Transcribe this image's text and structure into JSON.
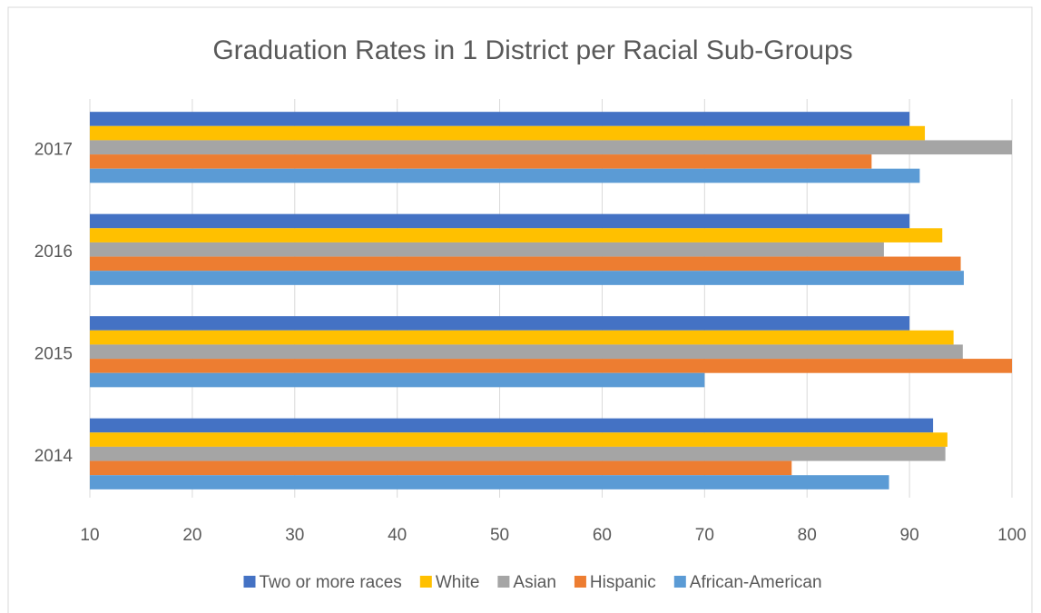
{
  "chart_data": {
    "type": "bar",
    "orientation": "horizontal",
    "title": "Graduation Rates in 1 District per Racial Sub-Groups",
    "categories": [
      "2014",
      "2015",
      "2016",
      "2017"
    ],
    "series": [
      {
        "name": "Two or more races",
        "color": "#4472c4",
        "values": [
          92.3,
          90,
          90,
          90
        ]
      },
      {
        "name": "White",
        "color": "#ffc000",
        "values": [
          93.7,
          94.3,
          93.2,
          91.5
        ]
      },
      {
        "name": "Asian",
        "color": "#a5a5a5",
        "values": [
          93.5,
          95.2,
          87.5,
          100
        ]
      },
      {
        "name": "Hispanic",
        "color": "#ed7d31",
        "values": [
          78.5,
          100,
          95,
          86.3
        ]
      },
      {
        "name": "African-American",
        "color": "#5b9bd5",
        "values": [
          88,
          70,
          95.3,
          91
        ]
      }
    ],
    "xlim": [
      10,
      100
    ],
    "xticks": [
      10,
      20,
      30,
      40,
      50,
      60,
      70,
      80,
      90,
      100
    ],
    "grid": true,
    "legend": "bottom"
  }
}
